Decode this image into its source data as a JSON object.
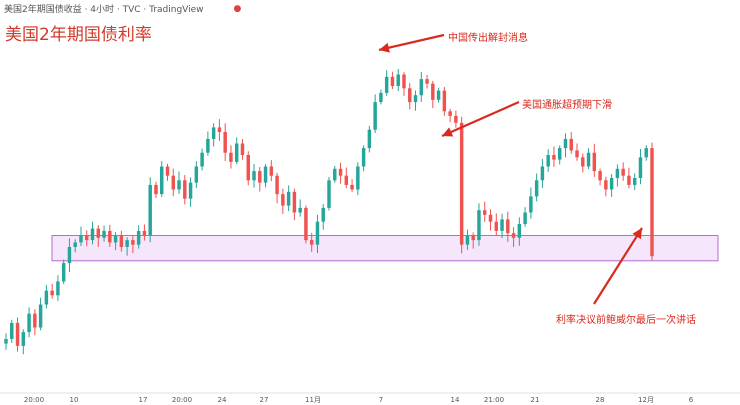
{
  "header": {
    "symbol_text": "美国2年期国债收益 · 4小时 · TVC · TradingView",
    "live_dot": "●"
  },
  "chart_data": {
    "type": "candlestick",
    "title": "美国2年期国债利率",
    "x_tick_labels": [
      "20:00",
      "10",
      "17",
      "20:00",
      "24",
      "27",
      "11月",
      "7",
      "14",
      "21:00",
      "21",
      "28",
      "12月",
      "6"
    ],
    "y_axis_labels": [],
    "support_zone": {
      "low": 4.39,
      "high": 4.5,
      "color": "#b86ad0"
    },
    "annotations": [
      {
        "text": "中国传出解封消息"
      },
      {
        "text": "美国通胀超预期下滑"
      },
      {
        "text": "利率决议前鲍威尔最后一次讲话"
      }
    ],
    "colors": {
      "up": "#26a69a",
      "down": "#ef5350",
      "arrow": "#d82a1e"
    },
    "close_series": [
      4.05,
      4.12,
      4.02,
      4.08,
      4.16,
      4.1,
      4.2,
      4.26,
      4.24,
      4.3,
      4.38,
      4.45,
      4.47,
      4.5,
      4.48,
      4.53,
      4.49,
      4.52,
      4.47,
      4.5,
      4.45,
      4.48,
      4.46,
      4.52,
      4.5,
      4.72,
      4.68,
      4.8,
      4.76,
      4.7,
      4.74,
      4.66,
      4.73,
      4.8,
      4.86,
      4.92,
      4.97,
      4.95,
      4.86,
      4.82,
      4.9,
      4.85,
      4.74,
      4.78,
      4.73,
      4.8,
      4.76,
      4.68,
      4.63,
      4.69,
      4.6,
      4.62,
      4.48,
      4.46,
      4.56,
      4.62,
      4.74,
      4.79,
      4.76,
      4.72,
      4.7,
      4.8,
      4.88,
      4.96,
      5.08,
      5.12,
      5.19,
      5.15,
      5.2,
      5.14,
      5.08,
      5.11,
      5.18,
      5.16,
      5.09,
      5.13,
      5.04,
      5.02,
      4.99,
      4.46,
      4.5,
      4.48,
      4.61,
      4.59,
      4.56,
      4.52,
      4.57,
      4.51,
      4.49,
      4.55,
      4.6,
      4.67,
      4.74,
      4.8,
      4.85,
      4.83,
      4.88,
      4.92,
      4.87,
      4.84,
      4.8,
      4.86,
      4.78,
      4.74,
      4.7,
      4.75,
      4.79,
      4.76,
      4.72,
      4.75,
      4.84,
      4.88,
      4.41
    ],
    "bar_count": 113
  },
  "arrows": [
    {
      "label": "中国传出解封消息"
    },
    {
      "label": "美国通胀超预期下滑"
    },
    {
      "label": "利率决议前鲍威尔最后一次讲话"
    }
  ]
}
